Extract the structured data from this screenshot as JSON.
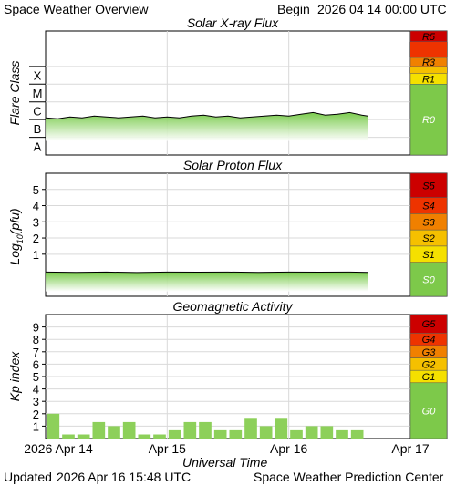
{
  "header": {
    "title": "Space Weather Overview",
    "begin_label": "Begin",
    "begin_value": "2026 04 14 00:00 UTC"
  },
  "footer": {
    "updated_label": "Updated",
    "updated_value": "2026 Apr 16 15:48 UTC",
    "center": "Space Weather Prediction Center"
  },
  "colors": {
    "green_fill": "#8dd05a",
    "green_scale": "#7dc94a",
    "scale_r5": "#cc0000",
    "scale_r4": "#ee3300",
    "scale_r3": "#f08000",
    "scale_r2": "#f5c000",
    "scale_r1": "#f5e000",
    "line": "#000000",
    "grid": "#d9d9d9"
  },
  "chart_data": [
    {
      "type": "area",
      "title": "Solar X-ray Flux",
      "ylabel": "Flare Class",
      "xlabel": "",
      "ylim": [
        -9,
        -2
      ],
      "y_tick_labels": [
        "A",
        "B",
        "C",
        "M",
        "X"
      ],
      "x_tick_labels": [
        "2026 Apr 14",
        "Apr 15",
        "Apr 16",
        "Apr 17"
      ],
      "x_range_days": [
        0,
        3
      ],
      "data_end_day": 2.65,
      "series": [
        {
          "x_days": [
            0,
            0.1,
            0.2,
            0.3,
            0.4,
            0.5,
            0.6,
            0.7,
            0.8,
            0.9,
            1.0,
            1.1,
            1.2,
            1.3,
            1.4,
            1.5,
            1.6,
            1.7,
            1.8,
            1.9,
            2.0,
            2.1,
            2.2,
            2.3,
            2.4,
            2.5,
            2.6,
            2.65
          ],
          "values": [
            -6.9,
            -6.95,
            -6.85,
            -6.9,
            -6.8,
            -6.85,
            -6.9,
            -6.85,
            -6.8,
            -6.9,
            -6.85,
            -6.9,
            -6.8,
            -6.75,
            -6.85,
            -6.8,
            -6.9,
            -6.85,
            -6.8,
            -6.75,
            -6.8,
            -6.7,
            -6.6,
            -6.75,
            -6.7,
            -6.6,
            -6.75,
            -6.8
          ]
        }
      ],
      "scale_labels": [
        "R5",
        "R3",
        "R1",
        "R0"
      ]
    },
    {
      "type": "area",
      "title": "Solar Proton Flux",
      "ylabel": "Log10(pfu)",
      "ylabel_prefix": "Log",
      "ylabel_sub": "10",
      "ylabel_suffix": "(pfu)",
      "ylim": [
        -1.6,
        6
      ],
      "y_ticks": [
        1,
        2,
        3,
        4,
        5
      ],
      "x_range_days": [
        0,
        3
      ],
      "data_end_day": 2.65,
      "series": [
        {
          "x_days": [
            0,
            0.25,
            0.5,
            0.75,
            1.0,
            1.25,
            1.5,
            1.75,
            2.0,
            2.25,
            2.5,
            2.65
          ],
          "values": [
            -0.1,
            -0.12,
            -0.1,
            -0.13,
            -0.1,
            -0.11,
            -0.1,
            -0.12,
            -0.1,
            -0.11,
            -0.1,
            -0.12
          ]
        }
      ],
      "scale_labels": [
        "S5",
        "S4",
        "S3",
        "S2",
        "S1",
        "S0"
      ]
    },
    {
      "type": "bar",
      "title": "Geomagnetic Activity",
      "ylabel": "Kp index",
      "xlabel": "Universal Time",
      "ylim": [
        0,
        10
      ],
      "y_ticks": [
        1,
        2,
        3,
        4,
        5,
        6,
        7,
        8,
        9
      ],
      "x_tick_labels": [
        "2026 Apr 14",
        "Apr 15",
        "Apr 16",
        "Apr 17"
      ],
      "x_range_days": [
        0,
        3
      ],
      "bar_width_days": 0.125,
      "values": [
        2.0,
        0.33,
        0.33,
        1.33,
        1.0,
        1.33,
        0.33,
        0.33,
        0.67,
        1.33,
        1.33,
        0.67,
        0.67,
        1.67,
        1.0,
        1.67,
        0.67,
        1.0,
        1.0,
        0.67,
        0.67
      ],
      "scale_labels": [
        "G5",
        "G4",
        "G3",
        "G2",
        "G1",
        "G0"
      ]
    }
  ]
}
